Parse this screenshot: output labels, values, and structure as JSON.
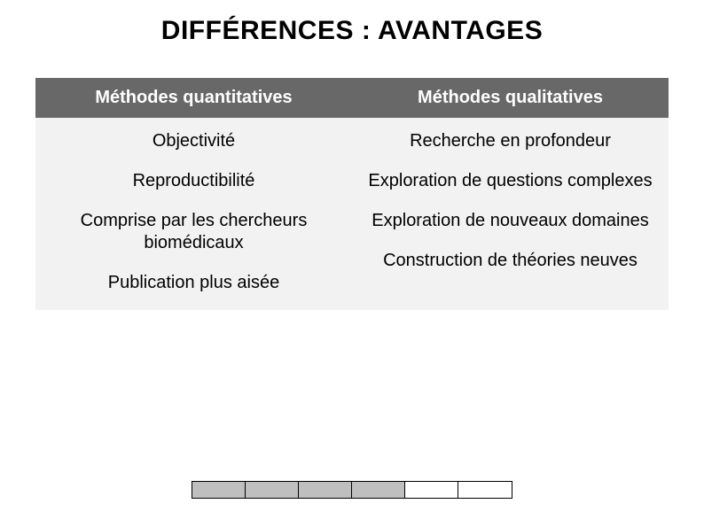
{
  "title": "DIFFÉRENCES : AVANTAGES",
  "table": {
    "header": {
      "left": "Méthodes quantitatives",
      "right": "Méthodes qualitatives"
    },
    "left_items": [
      "Objectivité",
      "Reproductibilité",
      "Comprise par les chercheurs biomédicaux",
      "Publication plus aisée"
    ],
    "right_items": [
      "Recherche en profondeur",
      "Exploration de questions complexes",
      "Exploration de nouveaux domaines",
      "Construction de théories neuves"
    ]
  },
  "colors": {
    "header_bg": "#686868",
    "header_text": "#ffffff",
    "body_bg": "#f2f2f2",
    "body_text": "#000000",
    "title_text": "#000000",
    "page_bg": "#ffffff"
  },
  "typography": {
    "title_fontsize": 30,
    "header_fontsize": 20,
    "body_fontsize": 20,
    "font_family": "Trebuchet MS"
  },
  "footer_bar": {
    "segments": [
      {
        "width": 60,
        "fill": "#bfbfbf"
      },
      {
        "width": 60,
        "fill": "#bfbfbf"
      },
      {
        "width": 60,
        "fill": "#bfbfbf"
      },
      {
        "width": 60,
        "fill": "#bfbfbf"
      },
      {
        "width": 60,
        "fill": "#ffffff"
      },
      {
        "width": 60,
        "fill": "#ffffff"
      }
    ],
    "height": 18,
    "border_color": "#000000"
  }
}
